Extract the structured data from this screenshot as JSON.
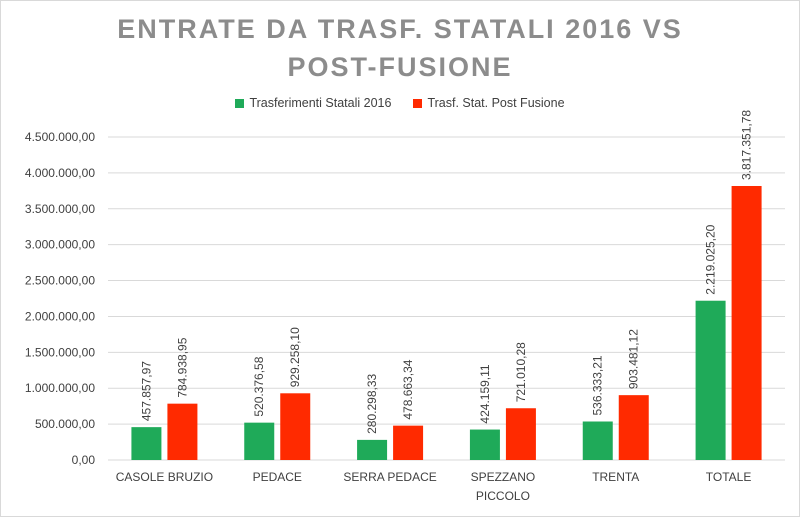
{
  "colors": {
    "series_2016": "#1faa59",
    "series_post": "#ff2a00",
    "grid": "#d9d9d9",
    "title": "#8c8c8c"
  },
  "chart_data": {
    "type": "bar",
    "title_lines": [
      "ENTRATE DA TRASF. STATALI 2016 VS",
      "POST-FUSIONE"
    ],
    "categories": [
      [
        "CASOLE BRUZIO"
      ],
      [
        "PEDACE"
      ],
      [
        "SERRA PEDACE"
      ],
      [
        "SPEZZANO",
        "PICCOLO"
      ],
      [
        "TRENTA"
      ],
      [
        "TOTALE"
      ]
    ],
    "series": [
      {
        "name": "Trasferimenti Statali 2016",
        "values": [
          457857.97,
          520376.58,
          280298.33,
          424159.11,
          536333.21,
          2219025.2
        ],
        "labels": [
          "457.857,97",
          "520.376,58",
          "280.298,33",
          "424.159,11",
          "536.333,21",
          "2.219.025,20"
        ]
      },
      {
        "name": "Trasf. Stat. Post Fusione",
        "values": [
          784938.95,
          929258.1,
          478663.34,
          721010.28,
          903481.12,
          3817351.78
        ],
        "labels": [
          "784.938,95",
          "929.258,10",
          "478.663,34",
          "721.010,28",
          "903.481,12",
          "3.817.351,78"
        ]
      }
    ],
    "ylim": [
      0,
      4500000
    ],
    "yticks": [
      0,
      500000,
      1000000,
      1500000,
      2000000,
      2500000,
      3000000,
      3500000,
      4000000,
      4500000
    ],
    "ytick_labels": [
      "0,00",
      "500.000,00",
      "1.000.000,00",
      "1.500.000,00",
      "2.000.000,00",
      "2.500.000,00",
      "3.000.000,00",
      "3.500.000,00",
      "4.000.000,00",
      "4.500.000,00"
    ],
    "grid": true,
    "legend": "top"
  }
}
